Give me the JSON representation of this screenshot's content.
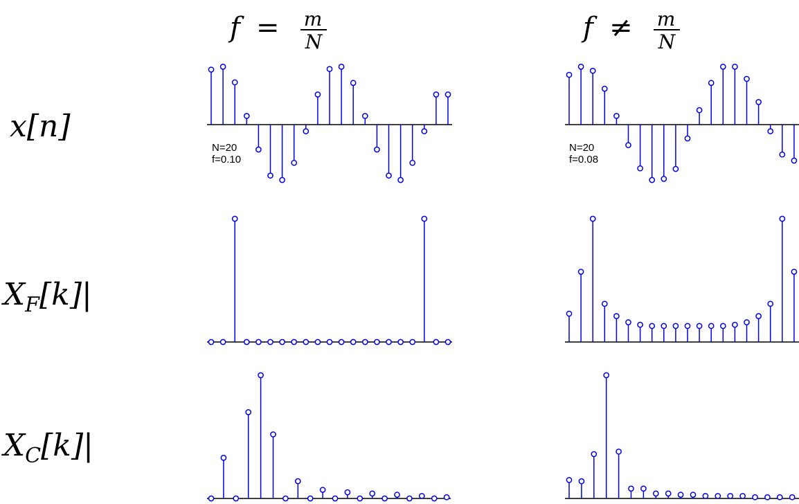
{
  "colors": {
    "stem": "#0000ee",
    "axis": "#000000",
    "text": "#000000"
  },
  "column_titles": [
    {
      "lhs": "f",
      "op": "=",
      "num": "m",
      "den": "N"
    },
    {
      "lhs": "f",
      "op": "≠",
      "num": "m",
      "den": "N"
    }
  ],
  "row_labels": [
    {
      "text": "x[n]"
    },
    {
      "text": "|X",
      "sub": "F",
      "tail": "[k]|"
    },
    {
      "text": "|X",
      "sub": "C",
      "tail": "[k]|"
    }
  ],
  "chart_data": [
    {
      "type": "stem",
      "row": 0,
      "col": 0,
      "annotations": [
        "N=20",
        "f=0.10"
      ],
      "x": [
        0,
        1,
        2,
        3,
        4,
        5,
        6,
        7,
        8,
        9,
        10,
        11,
        12,
        13,
        14,
        15,
        16,
        17,
        18,
        19,
        20
      ],
      "values": [
        0.95,
        1.0,
        0.73,
        0.15,
        -0.45,
        -0.92,
        -1.0,
        -0.69,
        -0.12,
        0.52,
        0.96,
        1.0,
        0.72,
        0.15,
        -0.45,
        -0.92,
        -1.0,
        -0.69,
        -0.12,
        0.52,
        0.52
      ],
      "ylim": [
        -1.1,
        1.1
      ]
    },
    {
      "type": "stem",
      "row": 0,
      "col": 1,
      "annotations": [
        "N=20",
        "f=0.08"
      ],
      "x": [
        0,
        1,
        2,
        3,
        4,
        5,
        6,
        7,
        8,
        9,
        10,
        11,
        12,
        13,
        14,
        15,
        16,
        17,
        18,
        19,
        20
      ],
      "values": [
        0.86,
        1.0,
        0.93,
        0.62,
        0.15,
        -0.37,
        -0.79,
        -1.0,
        -0.98,
        -0.8,
        -0.25,
        0.25,
        0.72,
        1.0,
        1.0,
        0.79,
        0.39,
        -0.12,
        -0.54,
        -0.65,
        -0.65
      ],
      "ylim": [
        -1.1,
        1.1
      ]
    },
    {
      "type": "stem",
      "row": 1,
      "col": 0,
      "x": [
        0,
        1,
        2,
        3,
        4,
        5,
        6,
        7,
        8,
        9,
        10,
        11,
        12,
        13,
        14,
        15,
        16,
        17,
        18,
        19,
        20
      ],
      "values": [
        0,
        0,
        10,
        0,
        0,
        0,
        0,
        0,
        0,
        0,
        0,
        0,
        0,
        0,
        0,
        0,
        0,
        0,
        10,
        0,
        0
      ],
      "ylim": [
        0,
        10
      ]
    },
    {
      "type": "stem",
      "row": 1,
      "col": 1,
      "x": [
        0,
        1,
        2,
        3,
        4,
        5,
        6,
        7,
        8,
        9,
        10,
        11,
        12,
        13,
        14,
        15,
        16,
        17,
        18,
        19,
        20
      ],
      "values": [
        2.3,
        5.7,
        10,
        3.1,
        2.1,
        1.6,
        1.4,
        1.3,
        1.3,
        1.3,
        1.3,
        1.3,
        1.3,
        1.3,
        1.4,
        1.6,
        2.1,
        3.1,
        10,
        5.7,
        2.3
      ],
      "ylim": [
        0,
        10
      ]
    },
    {
      "type": "stem",
      "row": 2,
      "col": 0,
      "x": [
        0,
        1,
        2,
        3,
        4,
        5,
        6,
        7,
        8,
        9,
        10,
        11,
        12,
        13,
        14,
        15,
        16,
        17,
        18,
        19
      ],
      "values": [
        0,
        3.3,
        0,
        7.0,
        10,
        5.2,
        0,
        1.4,
        0,
        0.7,
        0,
        0.5,
        0,
        0.4,
        0,
        0.3,
        0,
        0.2,
        0,
        0.1
      ],
      "ylim": [
        0,
        10
      ]
    },
    {
      "type": "stem",
      "row": 2,
      "col": 1,
      "x": [
        0,
        1,
        2,
        3,
        4,
        5,
        6,
        7,
        8,
        9,
        10,
        11,
        12,
        13,
        14,
        15,
        16,
        17,
        18,
        19
      ],
      "values": [
        1.5,
        1.4,
        3.6,
        10,
        3.8,
        0.8,
        0.8,
        0.4,
        0.4,
        0.3,
        0.3,
        0.2,
        0.2,
        0.2,
        0.2,
        0.1,
        0.1,
        0.1,
        0.1,
        0.1
      ],
      "ylim": [
        0,
        10
      ]
    }
  ]
}
